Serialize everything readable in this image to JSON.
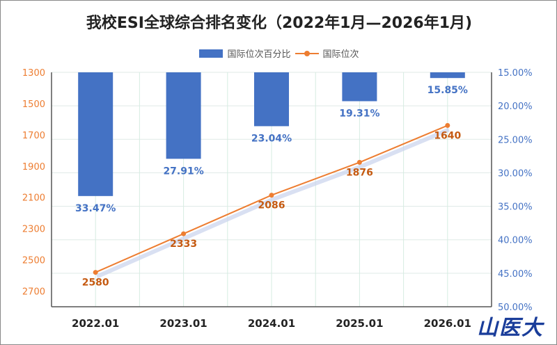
{
  "chart_data": {
    "type": "bar+line",
    "title": "我校ESI全球综合排名变化（2022年1月—2026年1月)",
    "categories": [
      "2022.01",
      "2023.01",
      "2024.01",
      "2025.01",
      "2026.01"
    ],
    "series": [
      {
        "name": "国际位次百分比",
        "type": "bar",
        "axis": "right",
        "values": [
          33.47,
          27.91,
          23.04,
          19.31,
          15.85
        ],
        "labels": [
          "33.47%",
          "27.91%",
          "23.04%",
          "19.31%",
          "15.85%"
        ],
        "color": "#4472C4"
      },
      {
        "name": "国际位次",
        "type": "line",
        "axis": "left",
        "values": [
          2580,
          2333,
          2086,
          1876,
          1640
        ],
        "labels": [
          "2580",
          "2333",
          "2086",
          "1876",
          "1640"
        ],
        "color": "#ED7D31"
      }
    ],
    "left_axis": {
      "range": [
        1300,
        2800
      ],
      "inverted": true,
      "ticks": [
        "1300",
        "1500",
        "1700",
        "1900",
        "2100",
        "2300",
        "2500",
        "2700"
      ],
      "tick_values": [
        1300,
        1500,
        1700,
        1900,
        2100,
        2300,
        2500,
        2700
      ],
      "color": "#ED7D31"
    },
    "right_axis": {
      "range": [
        15,
        50
      ],
      "inverted": true,
      "ticks": [
        "15.00%",
        "20.00%",
        "25.00%",
        "30.00%",
        "35.00%",
        "40.00%",
        "45.00%",
        "50.00%"
      ],
      "tick_values": [
        15,
        20,
        25,
        30,
        35,
        40,
        45,
        50
      ],
      "color": "#4472C4"
    },
    "legend": "top-center",
    "grid": true
  },
  "logo": "山医大"
}
